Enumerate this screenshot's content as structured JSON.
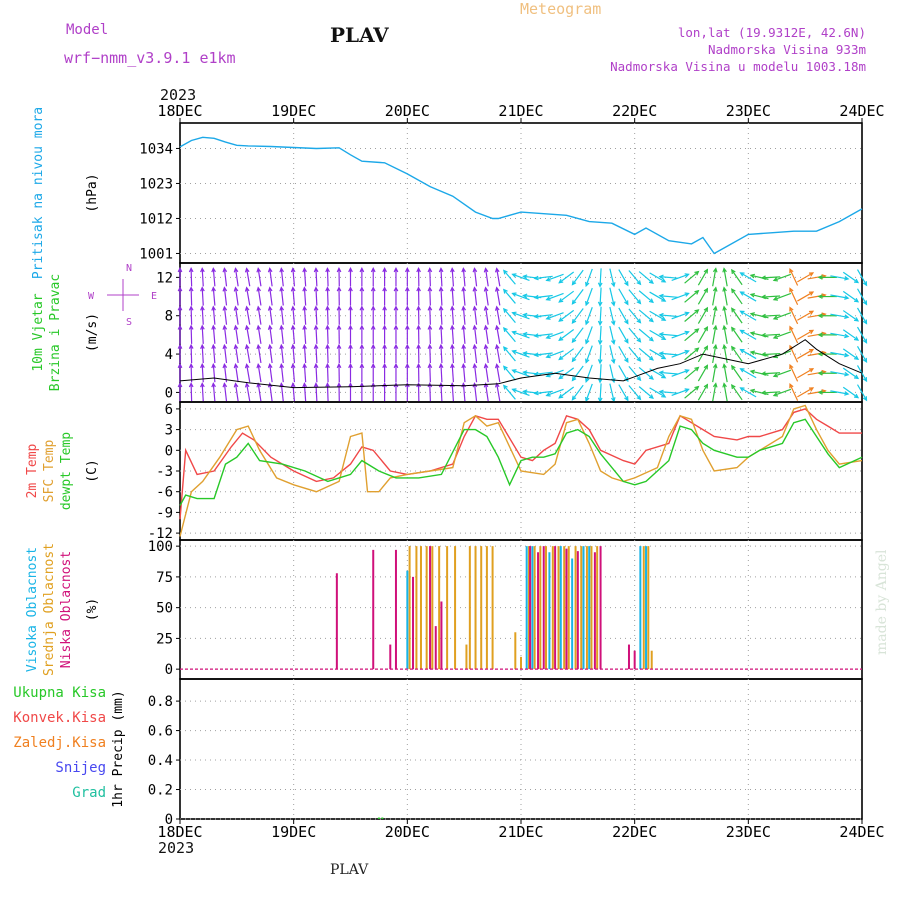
{
  "header": {
    "model_label": "Model",
    "model_name": "wrf−nmm_v3.9.1  e1km",
    "station": "PLAV",
    "meteogram_label": "Meteogram",
    "lonlat": "lon,lat (19.9312E, 42.6N)",
    "altitude": "Nadmorska Visina 933m",
    "model_altitude": "Nadmorska Visina u modelu 1003.18m",
    "footer_station": "PLAV",
    "watermark": "made by Angel",
    "year_top": "2023",
    "year_bottom": "2023"
  },
  "colors": {
    "pressure": "#1ca8e8",
    "temp_2m": "#f04848",
    "sfc_temp": "#e0a030",
    "dewpt": "#28c828",
    "high_cloud": "#19b4e6",
    "mid_cloud": "#e0a020",
    "low_cloud": "#d0107a",
    "wind_slow": "#8a2be2",
    "wind_mid": "#16c8e6",
    "wind_fast": "#30c040",
    "wind_strong": "#f08020",
    "meta_text": "#b040c8"
  },
  "chart_data": [
    {
      "type": "line",
      "panel": "pressure",
      "ylabel": [
        "Pritisak na nivou mora",
        "(hPa)"
      ],
      "ylim": [
        998,
        1042
      ],
      "yticks": [
        1001,
        1012,
        1023,
        1034
      ],
      "x_unit": "days since 18DEC 00Z",
      "series": [
        {
          "name": "Pritisak na nivou mora",
          "x": [
            0,
            0.1,
            0.2,
            0.3,
            0.4,
            0.5,
            0.6,
            0.8,
            1.0,
            1.2,
            1.4,
            1.5,
            1.6,
            1.8,
            2.0,
            2.2,
            2.4,
            2.6,
            2.75,
            2.8,
            3.0,
            3.2,
            3.4,
            3.6,
            3.8,
            4.0,
            4.1,
            4.3,
            4.5,
            4.6,
            4.7,
            4.8,
            5.0,
            5.2,
            5.4,
            5.6,
            5.8,
            6.0
          ],
          "values": [
            1034.5,
            1036.5,
            1037.5,
            1037.2,
            1036,
            1035,
            1034.8,
            1034.6,
            1034.3,
            1034,
            1034.2,
            1032,
            1030,
            1029.5,
            1026,
            1022,
            1019,
            1014,
            1012,
            1012,
            1014,
            1013.5,
            1013,
            1011,
            1010.5,
            1007,
            1009,
            1005,
            1004,
            1006,
            1001,
            1003,
            1007,
            1007.5,
            1008,
            1008,
            1011,
            1015
          ]
        }
      ]
    },
    {
      "type": "barbs",
      "panel": "wind",
      "ylabel": [
        "10m Vjetar",
        "Brzina i Pravac",
        "(m/s)"
      ],
      "ylim": [
        -1,
        13.5
      ],
      "yticks": [
        0,
        4,
        8,
        12
      ],
      "compass": {
        "n": "N",
        "s": "S",
        "w": "W",
        "e": "E"
      },
      "speed_series": {
        "x": [
          0,
          0.3,
          0.6,
          1.0,
          1.5,
          2.0,
          2.5,
          2.8,
          3.0,
          3.3,
          3.6,
          3.9,
          4.2,
          4.4,
          4.6,
          4.8,
          5.0,
          5.3,
          5.5,
          5.6,
          5.8,
          6.0
        ],
        "values": [
          1.2,
          1.5,
          1.0,
          0.5,
          0.6,
          0.8,
          0.7,
          0.9,
          1.5,
          2.0,
          1.5,
          1.2,
          2.5,
          3.0,
          4.0,
          3.5,
          3.0,
          4.0,
          5.5,
          4.5,
          3.0,
          2.0
        ]
      },
      "direction_deg": [
        90,
        95,
        100,
        95,
        90,
        90,
        95,
        100,
        160,
        200,
        250,
        300,
        330,
        20,
        60,
        100,
        150,
        200,
        30,
        10,
        350,
        300
      ]
    },
    {
      "type": "line",
      "panel": "temperature",
      "ylabel": [
        "2m Temp",
        "SFC Temp",
        "dewpt Temp",
        "(C)"
      ],
      "ylim": [
        -13,
        7
      ],
      "yticks": [
        -12,
        -9,
        -6,
        -3,
        0,
        3,
        6
      ],
      "series": [
        {
          "name": "2m Temp",
          "x": [
            0,
            0.05,
            0.15,
            0.3,
            0.45,
            0.55,
            0.65,
            0.8,
            1.0,
            1.2,
            1.35,
            1.5,
            1.6,
            1.7,
            1.85,
            2.0,
            2.2,
            2.4,
            2.5,
            2.6,
            2.7,
            2.8,
            3.0,
            3.1,
            3.2,
            3.3,
            3.4,
            3.5,
            3.6,
            3.7,
            3.9,
            4.0,
            4.1,
            4.3,
            4.4,
            4.5,
            4.6,
            4.7,
            4.9,
            5.0,
            5.1,
            5.3,
            5.4,
            5.5,
            5.6,
            5.7,
            5.8,
            6.0
          ],
          "values": [
            -10,
            0,
            -3.5,
            -3,
            0.5,
            2.5,
            1.5,
            -1,
            -3,
            -4.5,
            -4,
            -2,
            0.5,
            0,
            -3,
            -3.5,
            -3,
            -2,
            2,
            5,
            4.5,
            4.5,
            -1,
            -1.5,
            0,
            1,
            5,
            4.5,
            3,
            0,
            -1.5,
            -2,
            0,
            1,
            5,
            4,
            3,
            2,
            1.5,
            2,
            2,
            3,
            5.5,
            6,
            4.5,
            3.5,
            2.5,
            2.5
          ]
        },
        {
          "name": "SFC Temp",
          "x": [
            0,
            0.1,
            0.2,
            0.35,
            0.5,
            0.6,
            0.7,
            0.85,
            1.0,
            1.2,
            1.4,
            1.5,
            1.6,
            1.65,
            1.75,
            1.85,
            2.0,
            2.2,
            2.4,
            2.5,
            2.6,
            2.7,
            2.8,
            3.0,
            3.2,
            3.3,
            3.4,
            3.5,
            3.6,
            3.7,
            3.8,
            3.9,
            4.0,
            4.2,
            4.3,
            4.4,
            4.5,
            4.6,
            4.7,
            4.9,
            5.0,
            5.1,
            5.3,
            5.4,
            5.5,
            5.6,
            5.7,
            5.8,
            6.0
          ],
          "values": [
            -12.5,
            -6,
            -4.5,
            -1,
            3,
            3.5,
            0,
            -4,
            -5,
            -6,
            -4.5,
            2,
            2.5,
            -6,
            -6,
            -4,
            -3.5,
            -3,
            -2.5,
            4,
            5,
            3.5,
            4,
            -3,
            -3.5,
            -2,
            4,
            4.5,
            1,
            -3,
            -4,
            -4.5,
            -4,
            -2.5,
            2,
            5,
            4.5,
            0,
            -3,
            -2.5,
            -1,
            0,
            2,
            6,
            6.5,
            3,
            0,
            -2,
            -1.5
          ]
        },
        {
          "name": "dewpt Temp",
          "x": [
            0,
            0.05,
            0.15,
            0.3,
            0.4,
            0.5,
            0.6,
            0.7,
            0.9,
            1.1,
            1.3,
            1.4,
            1.5,
            1.6,
            1.75,
            1.9,
            2.1,
            2.3,
            2.5,
            2.6,
            2.7,
            2.8,
            2.9,
            3.0,
            3.1,
            3.2,
            3.3,
            3.4,
            3.5,
            3.6,
            3.7,
            3.9,
            4.0,
            4.1,
            4.3,
            4.4,
            4.5,
            4.6,
            4.7,
            4.9,
            5.0,
            5.1,
            5.3,
            5.4,
            5.5,
            5.6,
            5.7,
            5.8,
            6.0
          ],
          "values": [
            -8,
            -6.5,
            -7,
            -7,
            -2,
            -1,
            1,
            -1.5,
            -2,
            -3,
            -4.5,
            -4,
            -3.5,
            -1.5,
            -3,
            -4,
            -4,
            -3.5,
            3,
            3,
            2,
            -1,
            -5,
            -1.5,
            -1,
            -1,
            -0.5,
            2.5,
            3,
            2,
            -0.5,
            -4.5,
            -5,
            -4.5,
            -1.5,
            3.5,
            3,
            1,
            0,
            -1,
            -1,
            0,
            1,
            4,
            4.5,
            2,
            -0.5,
            -2.5,
            -1
          ]
        }
      ]
    },
    {
      "type": "bar",
      "panel": "clouds",
      "ylabel": [
        "Visoka Oblacnost",
        "Srednja Oblacnost",
        "Niska Oblacnost",
        "(%)"
      ],
      "ylim": [
        -8,
        105
      ],
      "yticks": [
        0,
        25,
        50,
        75,
        100
      ],
      "series": [
        {
          "name": "Visoka Oblacnost",
          "x": [
            2.0,
            2.05,
            3.05,
            3.1,
            3.25,
            3.35,
            3.45,
            3.55,
            3.6,
            4.05,
            4.1
          ],
          "values": [
            80,
            10,
            100,
            100,
            95,
            100,
            90,
            100,
            100,
            100,
            100
          ]
        },
        {
          "name": "Srednja Oblacnost",
          "x": [
            2.02,
            2.08,
            2.12,
            2.17,
            2.22,
            2.28,
            2.35,
            2.42,
            2.52,
            2.55,
            2.6,
            2.65,
            2.7,
            2.75,
            2.95,
            3.0,
            3.07,
            3.12,
            3.17,
            3.22,
            3.28,
            3.33,
            3.38,
            3.42,
            3.48,
            3.53,
            3.58,
            3.62,
            3.67,
            4.08,
            4.12,
            4.15
          ],
          "values": [
            100,
            100,
            100,
            100,
            100,
            100,
            100,
            100,
            20,
            100,
            100,
            100,
            100,
            100,
            30,
            10,
            100,
            100,
            100,
            100,
            100,
            100,
            100,
            100,
            100,
            100,
            100,
            100,
            100,
            100,
            100,
            15
          ]
        },
        {
          "name": "Niska Oblacnost",
          "x": [
            1.38,
            1.7,
            1.85,
            1.9,
            2.05,
            2.2,
            2.25,
            2.3,
            3.08,
            3.15,
            3.2,
            3.3,
            3.4,
            3.5,
            3.65,
            3.7,
            3.95,
            4.0
          ],
          "values": [
            78,
            97,
            20,
            97,
            75,
            100,
            35,
            55,
            100,
            95,
            100,
            100,
            98,
            96,
            95,
            100,
            20,
            15
          ]
        }
      ]
    },
    {
      "type": "bar",
      "panel": "precip",
      "ylabel": [
        "1hr Precip (mm)"
      ],
      "ylim": [
        0,
        0.95
      ],
      "yticks": [
        0,
        0.2,
        0.4,
        0.6,
        0.8
      ],
      "legend": [
        "Ukupna Kisa",
        "Konvek.Kisa",
        "Zaledj.Kisa",
        "Snijeg",
        "Grad"
      ],
      "series": [
        {
          "name": "Ukupna Kisa",
          "x": [
            1.75,
            1.78
          ],
          "values": [
            0.01,
            0.01
          ]
        }
      ]
    }
  ],
  "x_axis": {
    "labels": [
      "18DEC",
      "19DEC",
      "20DEC",
      "21DEC",
      "22DEC",
      "23DEC",
      "24DEC"
    ]
  }
}
